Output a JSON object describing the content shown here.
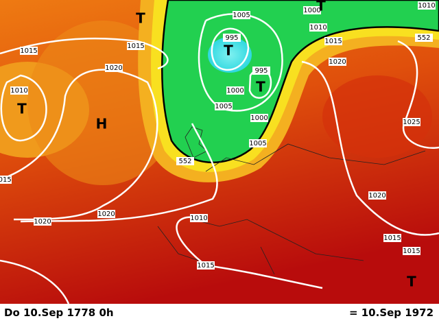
{
  "labels": [
    1010,
    1005,
    1000,
    1015,
    1015,
    995,
    1010,
    1015,
    1020,
    995,
    1000,
    1010,
    1005,
    1020,
    1000,
    1025,
    1005,
    552,
    552,
    1015,
    1020,
    1020,
    1010,
    1020,
    1015,
    1015,
    1015
  ],
  "centers": [
    "T",
    "T",
    "T",
    "T",
    "T",
    "H",
    "T"
  ],
  "footer": {
    "left": "Do 10.Sep 1778  0h",
    "right": "= 10.Sep 1972"
  }
}
